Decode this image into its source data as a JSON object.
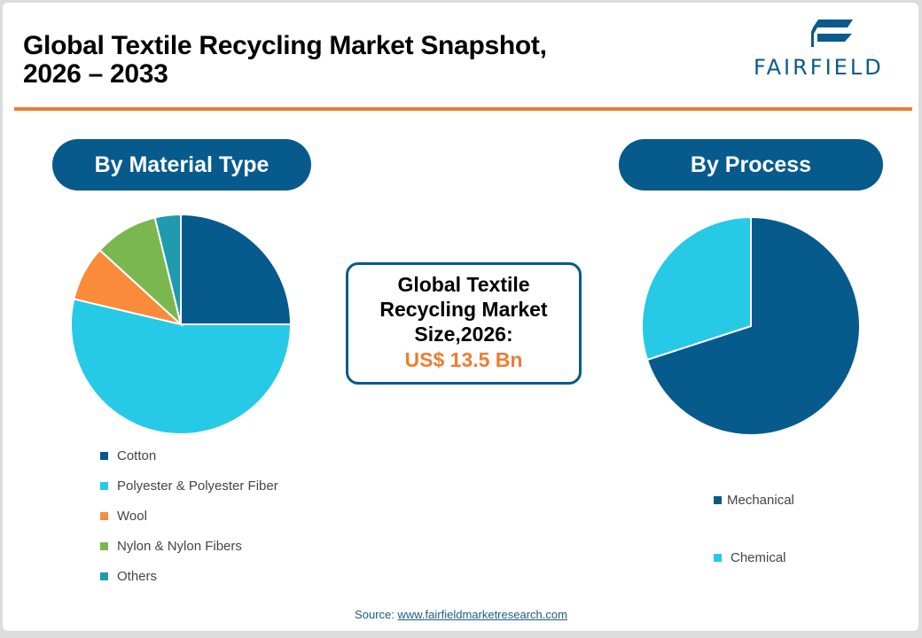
{
  "header": {
    "title_line1": "Global Textile Recycling Market Snapshot,",
    "title_line2": "2026 – 2033",
    "logo_text": "FAIRFIELD"
  },
  "colors": {
    "primary": "#065a8c",
    "accent": "#ed7d31",
    "cotton": "#065a8c",
    "polyester": "#26c9e6",
    "wool": "#f98b3a",
    "nylon": "#7ab84f",
    "others": "#1f9aae",
    "mechanical": "#065a8c",
    "chemical": "#26c9e6"
  },
  "left_panel": {
    "pill_label": "By Material Type"
  },
  "right_panel": {
    "pill_label": "By Process"
  },
  "center_box": {
    "line1": "Global Textile",
    "line2": "Recycling Market",
    "line3": "Size,2026:",
    "value": "US$ 13.5 Bn"
  },
  "footer": {
    "source_label": "Source:",
    "source_link": "www.fairfieldmarketresearch.com"
  },
  "chart_data": [
    {
      "type": "pie",
      "title": "By Material Type",
      "categories": [
        "Cotton",
        "Polyester & Polyester Fiber",
        "Wool",
        "Nylon & Nylon Fibers",
        "Others"
      ],
      "values": [
        25.0,
        53.7,
        8.1,
        9.4,
        3.8
      ],
      "colors": [
        "#065a8c",
        "#26c9e6",
        "#f98b3a",
        "#7ab84f",
        "#1f9aae"
      ],
      "legend_position": "bottom"
    },
    {
      "type": "pie",
      "title": "By Process",
      "categories": [
        "Mechanical",
        "Chemical"
      ],
      "values": [
        70,
        30
      ],
      "colors": [
        "#065a8c",
        "#26c9e6"
      ],
      "legend_position": "bottom"
    }
  ]
}
